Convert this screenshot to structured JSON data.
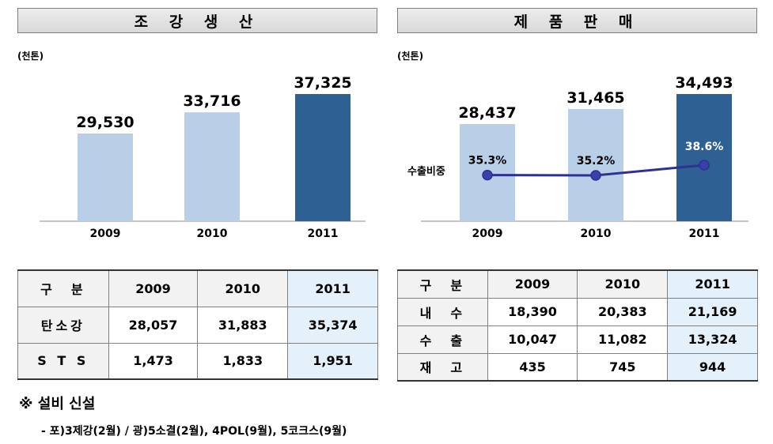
{
  "left": {
    "title": "조 강 생 산",
    "unit": "(천톤)",
    "chart": {
      "categories": [
        "2009",
        "2010",
        "2011"
      ],
      "value_labels": [
        "29,530",
        "33,716",
        "37,325"
      ]
    },
    "table": {
      "headers": [
        "구　분",
        "2009",
        "2010",
        "2011"
      ],
      "rows": [
        [
          "탄소강",
          "28,057",
          "31,883",
          "35,374"
        ],
        [
          "S T S",
          "1,473",
          "1,833",
          "1,951"
        ]
      ]
    }
  },
  "right": {
    "title": "제 품 판 매",
    "unit": "(천톤)",
    "chart": {
      "categories": [
        "2009",
        "2010",
        "2011"
      ],
      "value_labels": [
        "28,437",
        "31,465",
        "34,493"
      ],
      "line_label": "수출비중",
      "line_value_labels": [
        "35.3%",
        "35.2%",
        "38.6%"
      ]
    },
    "table": {
      "headers": [
        "구　분",
        "2009",
        "2010",
        "2011"
      ],
      "rows": [
        [
          "내　수",
          "18,390",
          "20,383",
          "21,169"
        ],
        [
          "수　출",
          "10,047",
          "11,082",
          "13,324"
        ],
        [
          "재　고",
          "435",
          "745",
          "944"
        ]
      ]
    }
  },
  "notes": {
    "title": "※ 설비 신설",
    "line": "- 포)3제강(2월) / 광)5소결(2월), 4POL(9월), 5코크스(9월)"
  },
  "colors": {
    "bar_light": "#b9cfe8",
    "bar_dark": "#2e6094",
    "line": "#2e3192"
  },
  "chart_data": [
    {
      "type": "bar",
      "title": "조 강 생 산",
      "ylabel": "(천톤)",
      "categories": [
        "2009",
        "2010",
        "2011"
      ],
      "values": [
        29530,
        33716,
        37325
      ]
    },
    {
      "type": "bar",
      "title": "제 품 판 매",
      "ylabel": "(천톤)",
      "categories": [
        "2009",
        "2010",
        "2011"
      ],
      "series": [
        {
          "name": "제품판매",
          "values": [
            28437,
            31465,
            34493
          ]
        },
        {
          "name": "수출비중",
          "values": [
            35.3,
            35.2,
            38.6
          ],
          "type": "line"
        }
      ]
    }
  ]
}
